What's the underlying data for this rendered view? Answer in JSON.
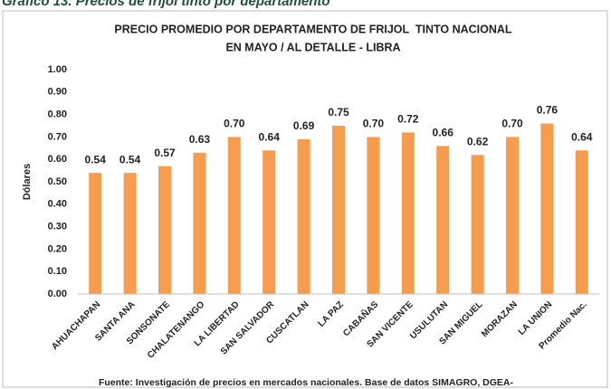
{
  "chart_data": {
    "type": "bar",
    "header": "Gráfico 13. Precios de frijol tinto por departamento",
    "title": "PRECIO PROMEDIO POR DEPARTAMENTO DE FRIJOL  TINTO NACIONAL",
    "subtitle": "EN MAYO / AL DETALLE - LIBRA",
    "y_label": "Dólares",
    "source": "Fuente: Investigación de precios en mercados nacionales. Base de datos SIMAGRO, DGEA-",
    "categories": [
      "AHUACHAPAN",
      "SANTA ANA",
      "SONSONATE",
      "CHALATENANGO",
      "LA LIBERTAD",
      "SAN SALVADOR",
      "CUSCATLAN",
      "LA PAZ",
      "CABAÑAS",
      "SAN VICENTE",
      "USULUTAN",
      "SAN MIGUEL",
      "MORAZAN",
      "LA UNION",
      "Promedio Nac."
    ],
    "values": [
      0.54,
      0.54,
      0.57,
      0.63,
      0.7,
      0.64,
      0.69,
      0.75,
      0.7,
      0.72,
      0.66,
      0.62,
      0.7,
      0.76,
      0.64
    ],
    "value_labels": [
      "0.54",
      "0.54",
      "0.57",
      "0.63",
      "0.70",
      "0.64",
      "0.69",
      "0.75",
      "0.70",
      "0.72",
      "0.66",
      "0.62",
      "0.70",
      "0.76",
      "0.64"
    ],
    "color": "#f79c4c",
    "ylim": [
      0,
      1
    ],
    "yticks": [
      {
        "value": 0,
        "label": "0.00"
      },
      {
        "value": 0.1,
        "label": "0.10"
      },
      {
        "value": 0.2,
        "label": "0.20"
      },
      {
        "value": 0.3,
        "label": "0.30"
      },
      {
        "value": 0.4,
        "label": "0.40"
      },
      {
        "value": 0.5,
        "label": "0.50"
      },
      {
        "value": 0.6,
        "label": "0.60"
      },
      {
        "value": 0.7,
        "label": "0.70"
      },
      {
        "value": 0.8,
        "label": "0.80"
      },
      {
        "value": 0.9,
        "label": "0.90"
      },
      {
        "value": 1,
        "label": "1.00"
      }
    ],
    "grid": false
  }
}
